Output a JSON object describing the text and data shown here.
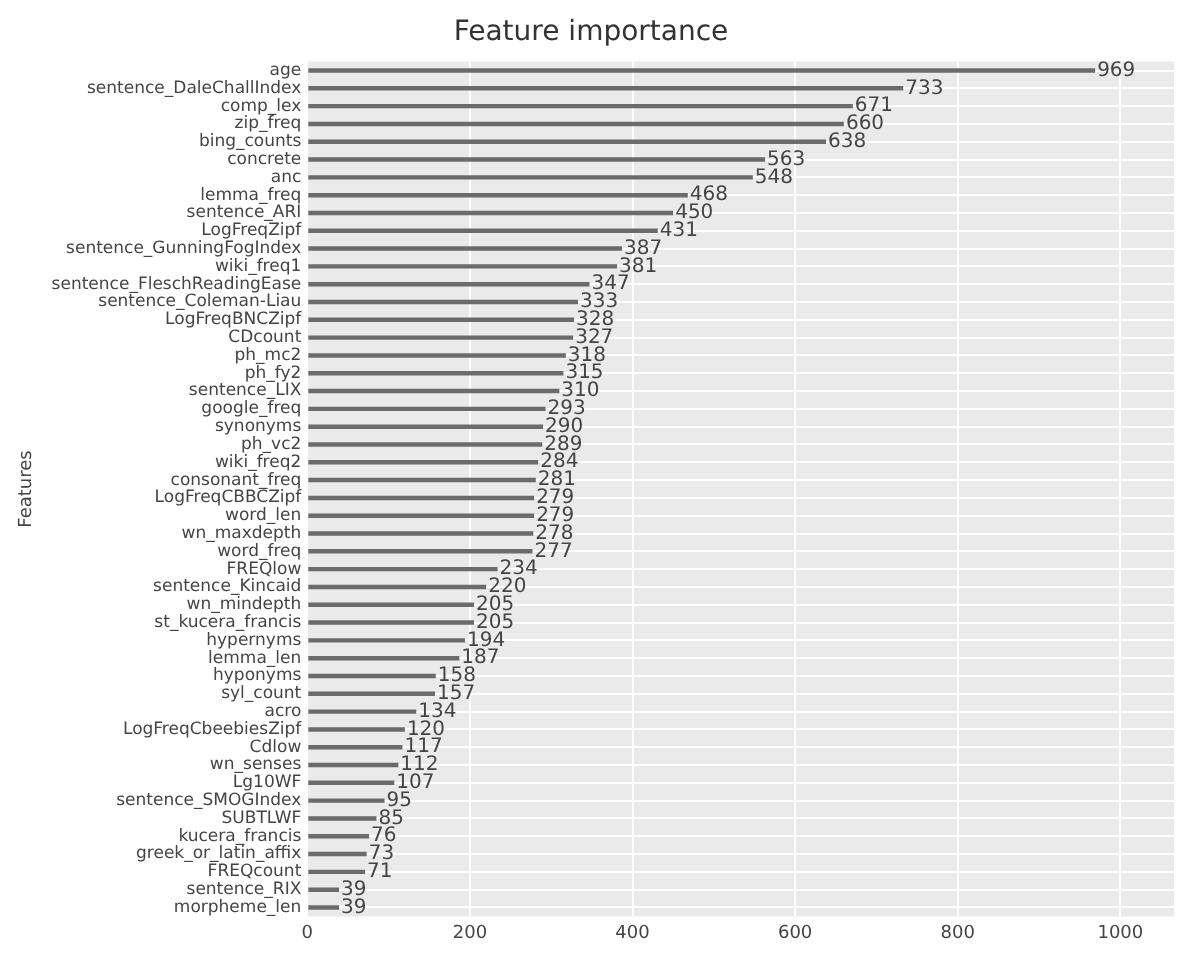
{
  "chart_data": {
    "type": "bar",
    "orientation": "horizontal",
    "title": "Feature importance",
    "ylabel": "Features",
    "categories": [
      "age",
      "sentence_DaleChallIndex",
      "comp_lex",
      "zip_freq",
      "bing_counts",
      "concrete",
      "anc",
      "lemma_freq",
      "sentence_ARI",
      "LogFreqZipf",
      "sentence_GunningFogIndex",
      "wiki_freq1",
      "sentence_FleschReadingEase",
      "sentence_Coleman-Liau",
      "LogFreqBNCZipf",
      "CDcount",
      "ph_mc2",
      "ph_fy2",
      "sentence_LIX",
      "google_freq",
      "synonyms",
      "ph_vc2",
      "wiki_freq2",
      "consonant_freq",
      "LogFreqCBBCZipf",
      "word_len",
      "wn_maxdepth",
      "word_freq",
      "FREQlow",
      "sentence_Kincaid",
      "wn_mindepth",
      "st_kucera_francis",
      "hypernyms",
      "lemma_len",
      "hyponyms",
      "syl_count",
      "acro",
      "LogFreqCbeebiesZipf",
      "Cdlow",
      "wn_senses",
      "Lg10WF",
      "sentence_SMOGIndex",
      "SUBTLWF",
      "kucera_francis",
      "greek_or_latin_affix",
      "FREQcount",
      "sentence_RIX",
      "morpheme_len"
    ],
    "values": [
      969,
      733,
      671,
      660,
      638,
      563,
      548,
      468,
      450,
      431,
      387,
      381,
      347,
      333,
      328,
      327,
      318,
      315,
      310,
      293,
      290,
      289,
      284,
      281,
      279,
      279,
      278,
      277,
      234,
      220,
      205,
      205,
      194,
      187,
      158,
      157,
      134,
      120,
      117,
      112,
      107,
      95,
      85,
      76,
      73,
      71,
      39,
      39
    ],
    "color": "#6b6b6b",
    "xlim": [
      0,
      1066
    ],
    "xticks": [
      0,
      200,
      400,
      600,
      800,
      1000
    ],
    "grid": true,
    "data_labels": true
  }
}
